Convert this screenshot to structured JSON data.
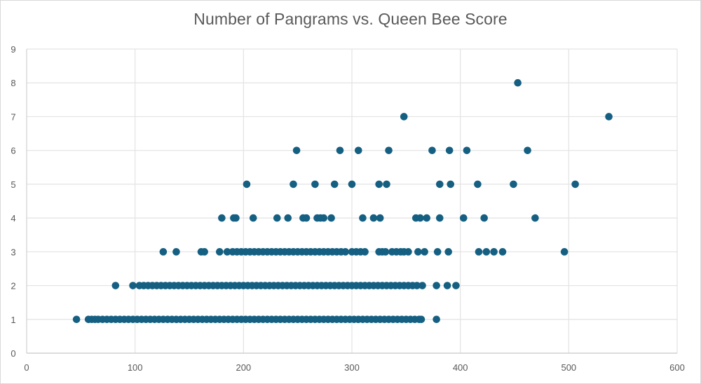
{
  "chart_data": {
    "type": "scatter",
    "title": "Number of Pangrams vs. Queen Bee Score",
    "xlabel": "",
    "ylabel": "",
    "xlim": [
      0,
      600
    ],
    "ylim": [
      0,
      9
    ],
    "x_ticks": [
      0,
      100,
      200,
      300,
      400,
      500,
      600
    ],
    "y_ticks": [
      0,
      1,
      2,
      3,
      4,
      5,
      6,
      7,
      8,
      9
    ],
    "grid": true,
    "legend": null,
    "marker_color": "#156082",
    "series": [
      {
        "name": "Pangrams",
        "points": [
          [
            46,
            1
          ],
          [
            57,
            1
          ],
          [
            60,
            1
          ],
          [
            63,
            1
          ],
          [
            66,
            1
          ],
          [
            70,
            1
          ],
          [
            74,
            1
          ],
          [
            78,
            1
          ],
          [
            82,
            1
          ],
          [
            86,
            1
          ],
          [
            90,
            1
          ],
          [
            94,
            1
          ],
          [
            98,
            1
          ],
          [
            102,
            1
          ],
          [
            106,
            1
          ],
          [
            110,
            1
          ],
          [
            114,
            1
          ],
          [
            118,
            1
          ],
          [
            122,
            1
          ],
          [
            126,
            1
          ],
          [
            130,
            1
          ],
          [
            134,
            1
          ],
          [
            138,
            1
          ],
          [
            142,
            1
          ],
          [
            146,
            1
          ],
          [
            150,
            1
          ],
          [
            154,
            1
          ],
          [
            158,
            1
          ],
          [
            162,
            1
          ],
          [
            166,
            1
          ],
          [
            170,
            1
          ],
          [
            174,
            1
          ],
          [
            178,
            1
          ],
          [
            182,
            1
          ],
          [
            186,
            1
          ],
          [
            190,
            1
          ],
          [
            194,
            1
          ],
          [
            198,
            1
          ],
          [
            202,
            1
          ],
          [
            206,
            1
          ],
          [
            210,
            1
          ],
          [
            214,
            1
          ],
          [
            218,
            1
          ],
          [
            222,
            1
          ],
          [
            226,
            1
          ],
          [
            230,
            1
          ],
          [
            234,
            1
          ],
          [
            238,
            1
          ],
          [
            242,
            1
          ],
          [
            246,
            1
          ],
          [
            250,
            1
          ],
          [
            254,
            1
          ],
          [
            258,
            1
          ],
          [
            262,
            1
          ],
          [
            266,
            1
          ],
          [
            270,
            1
          ],
          [
            274,
            1
          ],
          [
            278,
            1
          ],
          [
            282,
            1
          ],
          [
            286,
            1
          ],
          [
            290,
            1
          ],
          [
            294,
            1
          ],
          [
            298,
            1
          ],
          [
            302,
            1
          ],
          [
            306,
            1
          ],
          [
            310,
            1
          ],
          [
            314,
            1
          ],
          [
            318,
            1
          ],
          [
            322,
            1
          ],
          [
            326,
            1
          ],
          [
            330,
            1
          ],
          [
            334,
            1
          ],
          [
            338,
            1
          ],
          [
            342,
            1
          ],
          [
            346,
            1
          ],
          [
            350,
            1
          ],
          [
            354,
            1
          ],
          [
            358,
            1
          ],
          [
            362,
            1
          ],
          [
            364,
            1
          ],
          [
            378,
            1
          ],
          [
            82,
            2
          ],
          [
            98,
            2
          ],
          [
            104,
            2
          ],
          [
            108,
            2
          ],
          [
            112,
            2
          ],
          [
            116,
            2
          ],
          [
            120,
            2
          ],
          [
            124,
            2
          ],
          [
            128,
            2
          ],
          [
            132,
            2
          ],
          [
            136,
            2
          ],
          [
            140,
            2
          ],
          [
            144,
            2
          ],
          [
            148,
            2
          ],
          [
            152,
            2
          ],
          [
            156,
            2
          ],
          [
            160,
            2
          ],
          [
            164,
            2
          ],
          [
            168,
            2
          ],
          [
            172,
            2
          ],
          [
            176,
            2
          ],
          [
            180,
            2
          ],
          [
            184,
            2
          ],
          [
            188,
            2
          ],
          [
            192,
            2
          ],
          [
            196,
            2
          ],
          [
            200,
            2
          ],
          [
            204,
            2
          ],
          [
            208,
            2
          ],
          [
            212,
            2
          ],
          [
            216,
            2
          ],
          [
            220,
            2
          ],
          [
            224,
            2
          ],
          [
            228,
            2
          ],
          [
            232,
            2
          ],
          [
            236,
            2
          ],
          [
            240,
            2
          ],
          [
            244,
            2
          ],
          [
            248,
            2
          ],
          [
            252,
            2
          ],
          [
            256,
            2
          ],
          [
            260,
            2
          ],
          [
            264,
            2
          ],
          [
            268,
            2
          ],
          [
            272,
            2
          ],
          [
            276,
            2
          ],
          [
            280,
            2
          ],
          [
            284,
            2
          ],
          [
            288,
            2
          ],
          [
            292,
            2
          ],
          [
            296,
            2
          ],
          [
            300,
            2
          ],
          [
            304,
            2
          ],
          [
            308,
            2
          ],
          [
            312,
            2
          ],
          [
            316,
            2
          ],
          [
            320,
            2
          ],
          [
            324,
            2
          ],
          [
            328,
            2
          ],
          [
            332,
            2
          ],
          [
            336,
            2
          ],
          [
            340,
            2
          ],
          [
            344,
            2
          ],
          [
            348,
            2
          ],
          [
            352,
            2
          ],
          [
            356,
            2
          ],
          [
            360,
            2
          ],
          [
            365,
            2
          ],
          [
            378,
            2
          ],
          [
            388,
            2
          ],
          [
            396,
            2
          ],
          [
            126,
            3
          ],
          [
            138,
            3
          ],
          [
            161,
            3
          ],
          [
            164,
            3
          ],
          [
            178,
            3
          ],
          [
            185,
            3
          ],
          [
            190,
            3
          ],
          [
            194,
            3
          ],
          [
            198,
            3
          ],
          [
            202,
            3
          ],
          [
            206,
            3
          ],
          [
            210,
            3
          ],
          [
            214,
            3
          ],
          [
            218,
            3
          ],
          [
            222,
            3
          ],
          [
            226,
            3
          ],
          [
            230,
            3
          ],
          [
            234,
            3
          ],
          [
            238,
            3
          ],
          [
            242,
            3
          ],
          [
            246,
            3
          ],
          [
            250,
            3
          ],
          [
            254,
            3
          ],
          [
            258,
            3
          ],
          [
            262,
            3
          ],
          [
            266,
            3
          ],
          [
            270,
            3
          ],
          [
            274,
            3
          ],
          [
            278,
            3
          ],
          [
            282,
            3
          ],
          [
            286,
            3
          ],
          [
            290,
            3
          ],
          [
            294,
            3
          ],
          [
            300,
            3
          ],
          [
            304,
            3
          ],
          [
            308,
            3
          ],
          [
            312,
            3
          ],
          [
            325,
            3
          ],
          [
            328,
            3
          ],
          [
            331,
            3
          ],
          [
            337,
            3
          ],
          [
            341,
            3
          ],
          [
            345,
            3
          ],
          [
            348,
            3
          ],
          [
            352,
            3
          ],
          [
            361,
            3
          ],
          [
            367,
            3
          ],
          [
            379,
            3
          ],
          [
            389,
            3
          ],
          [
            417,
            3
          ],
          [
            424,
            3
          ],
          [
            431,
            3
          ],
          [
            439,
            3
          ],
          [
            496,
            3
          ],
          [
            180,
            4
          ],
          [
            191,
            4
          ],
          [
            193,
            4
          ],
          [
            209,
            4
          ],
          [
            231,
            4
          ],
          [
            241,
            4
          ],
          [
            255,
            4
          ],
          [
            258,
            4
          ],
          [
            268,
            4
          ],
          [
            271,
            4
          ],
          [
            274,
            4
          ],
          [
            281,
            4
          ],
          [
            310,
            4
          ],
          [
            320,
            4
          ],
          [
            326,
            4
          ],
          [
            359,
            4
          ],
          [
            363,
            4
          ],
          [
            369,
            4
          ],
          [
            381,
            4
          ],
          [
            403,
            4
          ],
          [
            422,
            4
          ],
          [
            469,
            4
          ],
          [
            203,
            5
          ],
          [
            246,
            5
          ],
          [
            266,
            5
          ],
          [
            284,
            5
          ],
          [
            300,
            5
          ],
          [
            325,
            5
          ],
          [
            332,
            5
          ],
          [
            381,
            5
          ],
          [
            391,
            5
          ],
          [
            416,
            5
          ],
          [
            449,
            5
          ],
          [
            506,
            5
          ],
          [
            249,
            6
          ],
          [
            289,
            6
          ],
          [
            306,
            6
          ],
          [
            334,
            6
          ],
          [
            374,
            6
          ],
          [
            390,
            6
          ],
          [
            406,
            6
          ],
          [
            462,
            6
          ],
          [
            348,
            7
          ],
          [
            537,
            7
          ],
          [
            453,
            8
          ]
        ]
      }
    ]
  },
  "chart": {
    "title": "Number of Pangrams vs. Queen Bee Score"
  }
}
